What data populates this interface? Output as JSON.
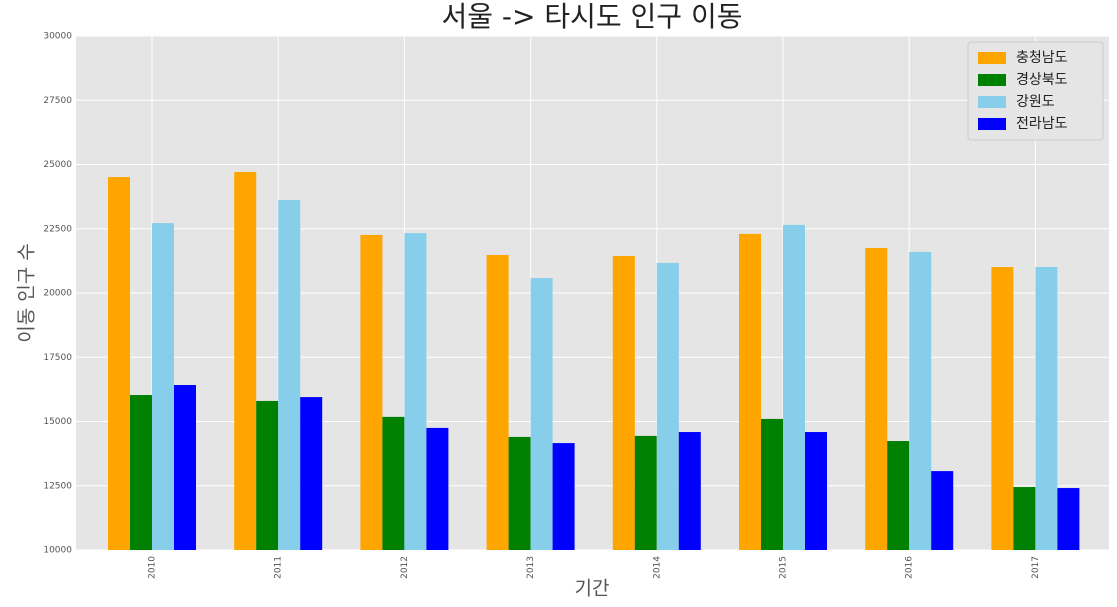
{
  "chart_data": {
    "type": "bar",
    "title": "서울 -> 타시도 인구 이동",
    "x_label": "기간",
    "y_label": "이동 인구 수",
    "categories": [
      "2010",
      "2011",
      "2012",
      "2013",
      "2014",
      "2015",
      "2016",
      "2017"
    ],
    "series": [
      {
        "name": "충청남도",
        "color": "orange",
        "values": [
          24510,
          24710,
          22260,
          21480,
          21440,
          22300,
          21750,
          21010
        ]
      },
      {
        "name": "경상북도",
        "color": "green",
        "values": [
          16030,
          15800,
          15180,
          14400,
          14440,
          15100,
          14240,
          12450
        ]
      },
      {
        "name": "강원도",
        "color": "skyblue",
        "values": [
          22720,
          23620,
          22330,
          20580,
          21170,
          22650,
          21600,
          21010
        ]
      },
      {
        "name": "전라남도",
        "color": "blue",
        "values": [
          16420,
          15950,
          14750,
          14160,
          14590,
          14590,
          13070,
          12410
        ]
      }
    ],
    "ylim": [
      10000,
      30000
    ],
    "yticks": [
      10000,
      12500,
      15000,
      17500,
      20000,
      22500,
      25000,
      27500,
      30000
    ],
    "grid": true,
    "legend": "upper-right"
  }
}
